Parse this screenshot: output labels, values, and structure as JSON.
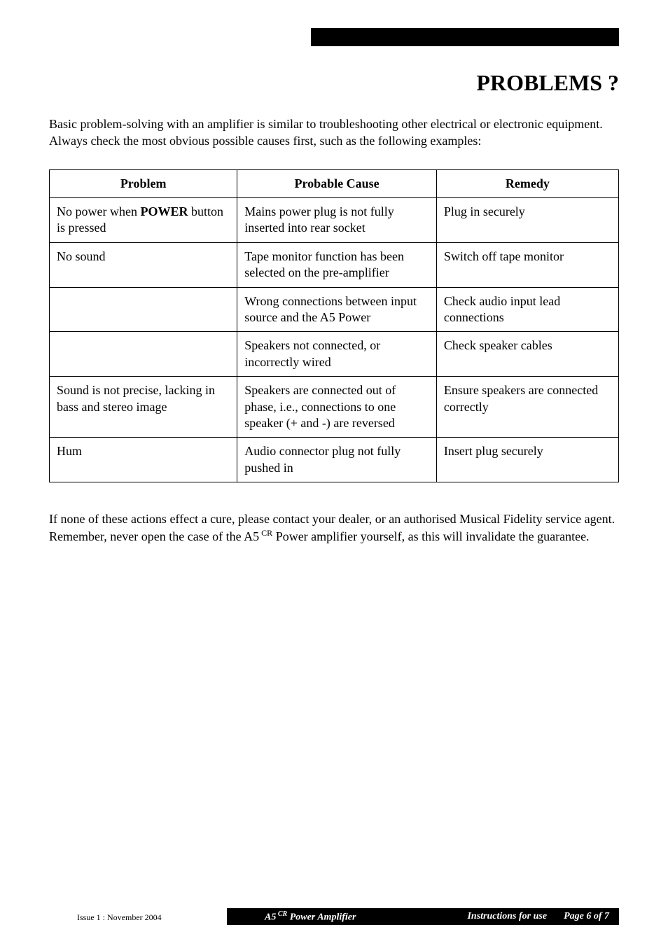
{
  "title": "PROBLEMS ?",
  "intro": "Basic problem-solving with an amplifier is similar to troubleshooting other electrical or electronic equipment.  Always check the most obvious possible causes first, such as the following examples:",
  "table": {
    "headers": {
      "problem": "Problem",
      "cause": "Probable Cause",
      "remedy": "Remedy"
    },
    "rows": [
      {
        "problem_prefix": "No power when ",
        "problem_bold": "POWER",
        "problem_suffix": " button is pressed",
        "cause": "Mains power plug is not fully inserted into rear socket",
        "remedy": "Plug in securely"
      },
      {
        "problem": "No sound",
        "cause": "Tape monitor function has been selected on the pre-amplifier",
        "remedy": "Switch off tape monitor"
      },
      {
        "problem": "",
        "cause": "Wrong connections between input source and the A5 Power",
        "remedy": "Check audio input lead connections"
      },
      {
        "problem": "",
        "cause": "Speakers not connected, or incorrectly wired",
        "remedy": "Check speaker cables"
      },
      {
        "problem": "Sound is not precise, lacking in bass and stereo image",
        "cause": "Speakers are connected out of phase, i.e., connections to one speaker (+ and -) are reversed",
        "remedy": "Ensure speakers are connected correctly"
      },
      {
        "problem": "Hum",
        "cause": "Audio connector plug not fully pushed in",
        "remedy": "Insert plug securely"
      }
    ]
  },
  "note_part1": "If none of these actions effect a cure, please contact your dealer, or an authorised Musical Fidelity service agent.  Remember, never open the case of the A5",
  "note_sup": " CR",
  "note_part2": " Power amplifier yourself, as this will invalidate the guarantee.",
  "footer": {
    "issue": "Issue 1 :  November 2004",
    "product_prefix": "A5",
    "product_sup": " CR",
    "product_suffix": " Power Amplifier",
    "instructions_label": "Instructions for use",
    "page": "Page 6 of 7"
  },
  "colors": {
    "black": "#000000",
    "white": "#ffffff"
  }
}
